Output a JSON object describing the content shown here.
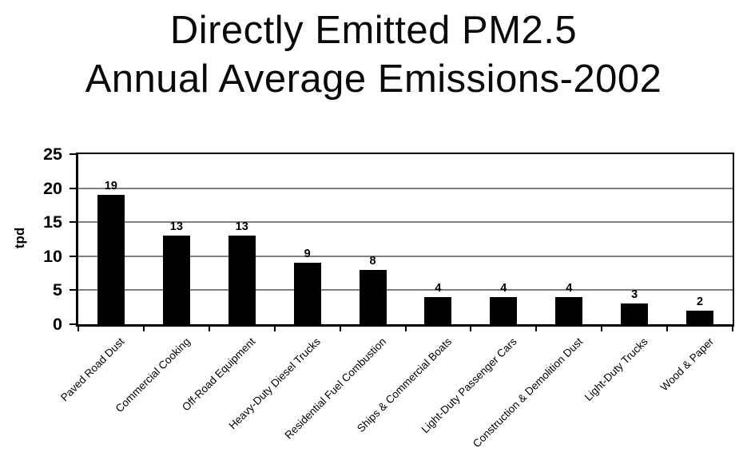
{
  "title": {
    "line1": "Directly Emitted PM2.5",
    "line2": "Annual Average Emissions-2002"
  },
  "chart_data": {
    "type": "bar",
    "title": "Directly Emitted PM2.5 Annual Average Emissions-2002",
    "categories": [
      "Paved Road Dust",
      "Commercial Cooking",
      "Off-Road Equipment",
      "Heavy-Duty Diesel Trucks",
      "Residential Fuel Combustion",
      "Ships & Commercial Boats",
      "Light-Duty Passenger Cars",
      "Construction & Demolition Dust",
      "Light-Duty Trucks",
      "Wood & Paper"
    ],
    "values": [
      19,
      13,
      13,
      9,
      8,
      4,
      4,
      4,
      3,
      2
    ],
    "data_labels_shown": true,
    "xlabel": "",
    "ylabel": "tpd",
    "ylim": [
      0,
      25
    ],
    "yticks": [
      0,
      5,
      10,
      15,
      20,
      25
    ],
    "grid": true,
    "legend_shown": false,
    "bar_color": "#000000",
    "gridline_color": "#808080",
    "axis_color": "#000000",
    "background_color": "#ffffff"
  }
}
